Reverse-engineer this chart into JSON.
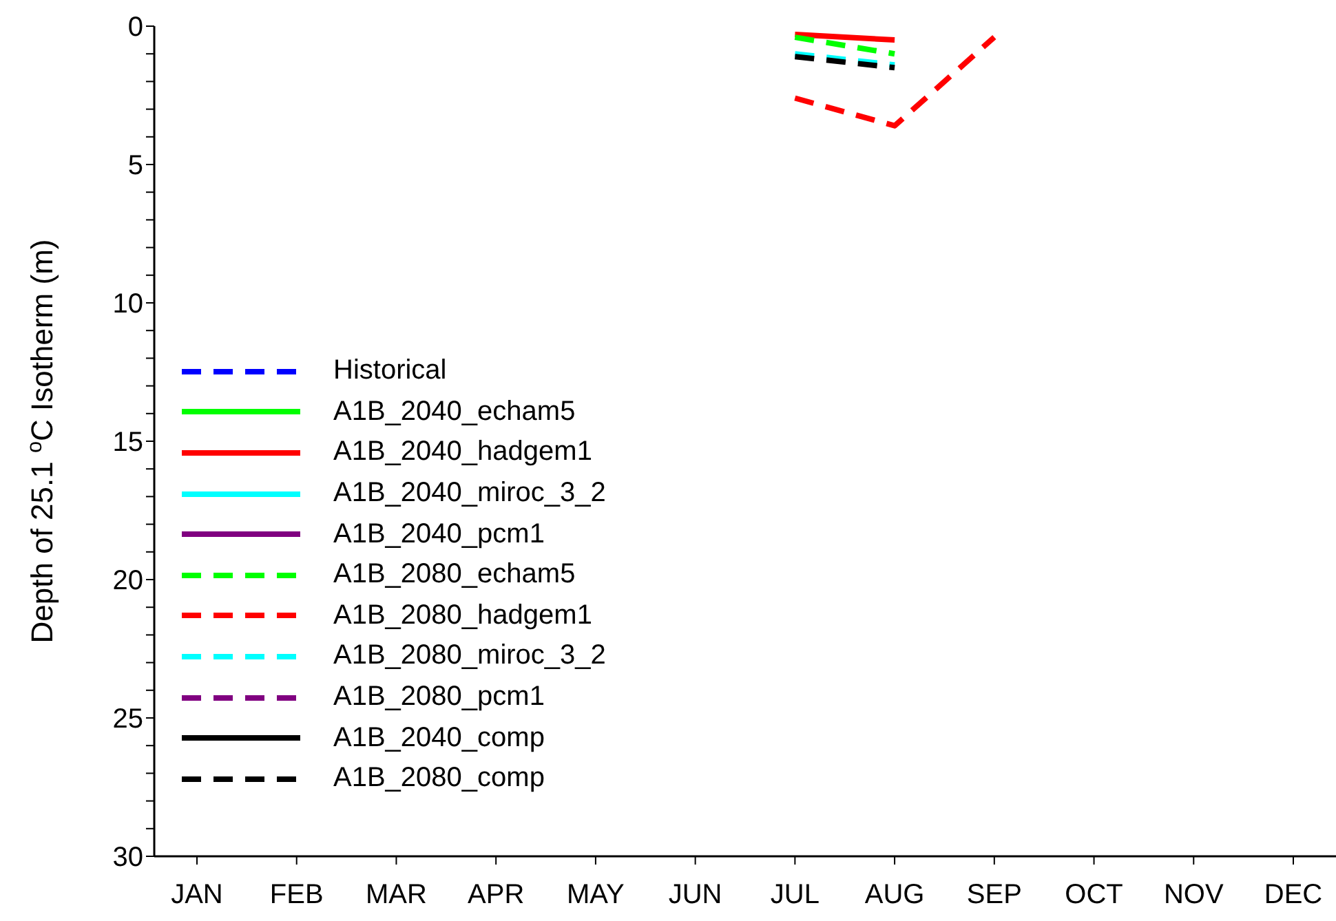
{
  "chart_data": {
    "type": "line",
    "ylabel": "Depth of 25.1 $^{o}$C Isotherm (m)",
    "categories": [
      "JAN",
      "FEB",
      "MAR",
      "APR",
      "MAY",
      "JUN",
      "JUL",
      "AUG",
      "SEP",
      "OCT",
      "NOV",
      "DEC"
    ],
    "ylim": [
      30,
      0
    ],
    "yticks": [
      0,
      {
        "value": 1,
        "label": null
      },
      {
        "value": 2,
        "label": null
      },
      {
        "value": 3,
        "label": null
      },
      {
        "value": 4,
        "label": null
      },
      5,
      {
        "value": 6,
        "label": null
      },
      {
        "value": 7,
        "label": null
      },
      {
        "value": 8,
        "label": null
      },
      {
        "value": 9,
        "label": null
      },
      10,
      {
        "value": 11,
        "label": null
      },
      {
        "value": 12,
        "label": null
      },
      {
        "value": 13,
        "label": null
      },
      {
        "value": 14,
        "label": null
      },
      15,
      {
        "value": 16,
        "label": null
      },
      {
        "value": 17,
        "label": null
      },
      {
        "value": 18,
        "label": null
      },
      {
        "value": 19,
        "label": null
      },
      20,
      {
        "value": 21,
        "label": null
      },
      {
        "value": 22,
        "label": null
      },
      {
        "value": 23,
        "label": null
      },
      {
        "value": 24,
        "label": null
      },
      25,
      {
        "value": 26,
        "label": null
      },
      {
        "value": 27,
        "label": null
      },
      {
        "value": 28,
        "label": null
      },
      {
        "value": 29,
        "label": null
      },
      30
    ],
    "grid": false,
    "legend": "left",
    "marker": "none",
    "series": [
      {
        "name": "Historical",
        "color": "#0000ff",
        "line_style": "dashed",
        "values": [
          null,
          null,
          null,
          null,
          null,
          null,
          null,
          null,
          null,
          null,
          null,
          null
        ]
      },
      {
        "name": "A1B_2040_echam5",
        "color": "#00ff00",
        "line_style": "solid",
        "values": [
          null,
          null,
          null,
          null,
          null,
          null,
          null,
          null,
          null,
          null,
          null,
          null
        ]
      },
      {
        "name": "A1B_2040_hadgem1",
        "color": "#ff0000",
        "line_style": "solid",
        "values": [
          null,
          null,
          null,
          null,
          null,
          null,
          0.3,
          0.5,
          null,
          null,
          null,
          null
        ]
      },
      {
        "name": "A1B_2040_miroc_3_2",
        "color": "#00ffff",
        "line_style": "solid",
        "values": [
          null,
          null,
          null,
          null,
          null,
          null,
          null,
          null,
          null,
          null,
          null,
          null
        ]
      },
      {
        "name": "A1B_2040_pcm1",
        "color": "#800080",
        "line_style": "solid",
        "values": [
          null,
          null,
          null,
          null,
          null,
          null,
          null,
          null,
          null,
          null,
          null,
          null
        ]
      },
      {
        "name": "A1B_2080_echam5",
        "color": "#00ff00",
        "line_style": "dashed",
        "values": [
          null,
          null,
          null,
          null,
          null,
          null,
          0.4,
          1.0,
          null,
          null,
          null,
          null
        ]
      },
      {
        "name": "A1B_2080_hadgem1",
        "color": "#ff0000",
        "line_style": "dashed",
        "values": [
          null,
          null,
          null,
          null,
          null,
          null,
          2.6,
          3.6,
          0.4,
          null,
          null,
          null
        ]
      },
      {
        "name": "A1B_2080_miroc_3_2",
        "color": "#00ffff",
        "line_style": "dashed",
        "values": [
          null,
          null,
          null,
          null,
          null,
          null,
          1.0,
          1.4,
          null,
          null,
          null,
          null
        ]
      },
      {
        "name": "A1B_2080_pcm1",
        "color": "#800080",
        "line_style": "dashed",
        "values": [
          null,
          null,
          null,
          null,
          null,
          null,
          null,
          null,
          null,
          null,
          null,
          null
        ]
      },
      {
        "name": "A1B_2040_comp",
        "color": "#000000",
        "line_style": "solid",
        "values": [
          null,
          null,
          null,
          null,
          null,
          null,
          null,
          null,
          null,
          null,
          null,
          null
        ]
      },
      {
        "name": "A1B_2080_comp",
        "color": "#000000",
        "line_style": "dashed",
        "values": [
          null,
          null,
          null,
          null,
          null,
          null,
          1.1,
          1.5,
          null,
          null,
          null,
          null
        ]
      }
    ]
  }
}
